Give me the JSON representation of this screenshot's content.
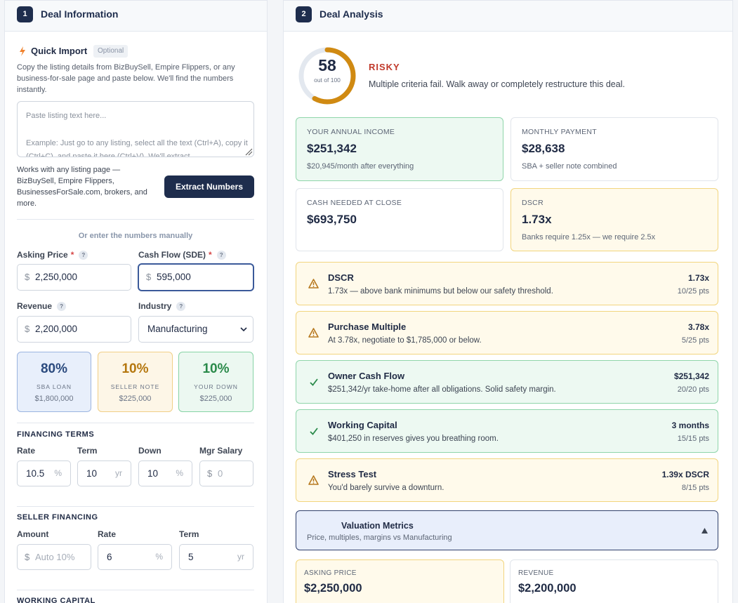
{
  "left_panel": {
    "step": "1",
    "title": "Deal Information",
    "quick_import": {
      "title": "Quick Import",
      "badge": "Optional",
      "description": "Copy the listing details from BizBuySell, Empire Flippers, or any business-for-sale page and paste below. We'll find the numbers instantly.",
      "placeholder_line_1": "Paste listing text here...",
      "placeholder_line_2": "Example: Just go to any listing, select all the text (Ctrl+A), copy it (Ctrl+C), and paste it here (Ctrl+V). We'll extract",
      "hint": "Works with any listing page — BizBuySell, Empire Flippers, BusinessesForSale.com, brokers, and more.",
      "button": "Extract Numbers"
    },
    "manual_divider": "Or enter the numbers manually",
    "fields": [
      {
        "label": "Asking Price",
        "required": "*",
        "help": "?",
        "prefix": "$",
        "value": "2,250,000"
      },
      {
        "label": "Cash Flow (SDE)",
        "required": "*",
        "help": "?",
        "prefix": "$",
        "value": "595,000"
      },
      {
        "label": "Revenue",
        "help": "?",
        "prefix": "$",
        "value": "2,200,000"
      },
      {
        "label": "Industry",
        "help": "?",
        "value": "Manufacturing"
      }
    ],
    "financing_split": [
      {
        "percent": "80%",
        "label": "SBA LOAN",
        "amount": "$1,800,000"
      },
      {
        "percent": "10%",
        "label": "SELLER NOTE",
        "amount": "$225,000"
      },
      {
        "percent": "10%",
        "label": "YOUR DOWN",
        "amount": "$225,000"
      }
    ],
    "financing_terms": {
      "title": "FINANCING TERMS",
      "fields": [
        {
          "label": "Rate",
          "value": "10.5",
          "suffix": "%"
        },
        {
          "label": "Term",
          "value": "10",
          "suffix": "yr"
        },
        {
          "label": "Down",
          "value": "10",
          "suffix": "%"
        },
        {
          "label": "Mgr Salary",
          "prefix": "$",
          "placeholder": "0"
        }
      ]
    },
    "seller_financing": {
      "title": "SELLER FINANCING",
      "fields": [
        {
          "label": "Amount",
          "prefix": "$",
          "placeholder": "Auto 10%"
        },
        {
          "label": "Rate",
          "value": "6",
          "suffix": "%"
        },
        {
          "label": "Term",
          "value": "5",
          "suffix": "yr"
        }
      ]
    },
    "working_capital_title": "WORKING CAPITAL"
  },
  "right_panel": {
    "step": "2",
    "title": "Deal Analysis",
    "score": {
      "value": 58,
      "max": 100,
      "caption": "out of 100",
      "rating": "RISKY",
      "summary": "Multiple criteria fail. Walk away or completely restructure this deal."
    },
    "metrics": [
      {
        "tone": "good",
        "label": "YOUR ANNUAL INCOME",
        "value": "$251,342",
        "note": "$20,945/month after everything"
      },
      {
        "tone": "neutral",
        "label": "MONTHLY PAYMENT",
        "value": "$28,638",
        "note": "SBA + seller note combined"
      },
      {
        "tone": "neutral",
        "label": "CASH NEEDED AT CLOSE",
        "value": "$693,750"
      },
      {
        "tone": "warning",
        "label": "DSCR",
        "value": "1.73x",
        "note": "Banks require 1.25x — we require 2.5x"
      }
    ],
    "criteria": [
      {
        "status": "warning",
        "title": "DSCR",
        "detail": "1.73x — above bank minimums but below our safety threshold.",
        "result": "1.73x",
        "points": "10/25 pts"
      },
      {
        "status": "warning",
        "title": "Purchase Multiple",
        "detail": "At 3.78x, negotiate to $1,785,000 or below.",
        "result": "3.78x",
        "points": "5/25 pts"
      },
      {
        "status": "pass",
        "title": "Owner Cash Flow",
        "detail": "$251,342/yr take-home after all obligations. Solid safety margin.",
        "result": "$251,342",
        "points": "20/20 pts"
      },
      {
        "status": "pass",
        "title": "Working Capital",
        "detail": "$401,250 in reserves gives you breathing room.",
        "result": "3 months",
        "points": "15/15 pts"
      },
      {
        "status": "warning",
        "title": "Stress Test",
        "detail": "You'd barely survive a downturn.",
        "result": "1.39x DSCR",
        "points": "8/15 pts"
      }
    ],
    "valuation": {
      "title": "Valuation Metrics",
      "subtitle": "Price, multiples, margins vs Manufacturing",
      "cards": [
        {
          "tone": "warning",
          "label": "ASKING PRICE",
          "value": "$2,250,000"
        },
        {
          "tone": "neutral",
          "label": "REVENUE",
          "value": "$2,200,000"
        }
      ]
    }
  }
}
